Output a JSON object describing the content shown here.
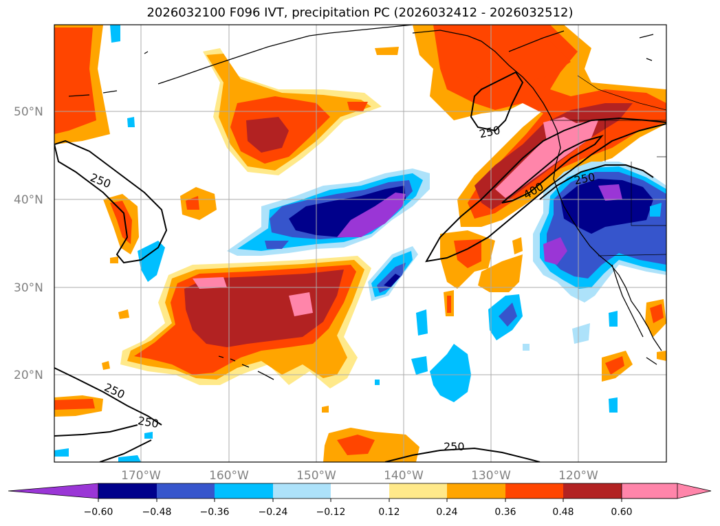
{
  "title": "2026032100 F096 IVT, precipitation PC (2026032412 - 2026032512)",
  "map": {
    "extent": {
      "lon_min": -180,
      "lon_max": -110,
      "lat_min": 10,
      "lat_max": 60
    },
    "lat_labels": [
      "50°N",
      "40°N",
      "30°N",
      "20°N"
    ],
    "lon_labels": [
      "170°W",
      "160°W",
      "150°W",
      "140°W",
      "130°W",
      "120°W"
    ],
    "gridlines": true,
    "ivt_contour_labels": [
      "250",
      "250",
      "250",
      "250",
      "400",
      "250",
      "250"
    ]
  },
  "colorbar": {
    "tick_labels": [
      "−0.60",
      "−0.48",
      "−0.36",
      "−0.24",
      "−0.12",
      "0.12",
      "0.24",
      "0.36",
      "0.48",
      "0.60"
    ],
    "colors": [
      "#9a36d6",
      "#00008b",
      "#3655cc",
      "#00bfff",
      "#ade2fa",
      "#ffffff",
      "#ffe98a",
      "#ffa500",
      "#ff4500",
      "#b22222",
      "#ff85aa"
    ],
    "extend": "both"
  }
}
